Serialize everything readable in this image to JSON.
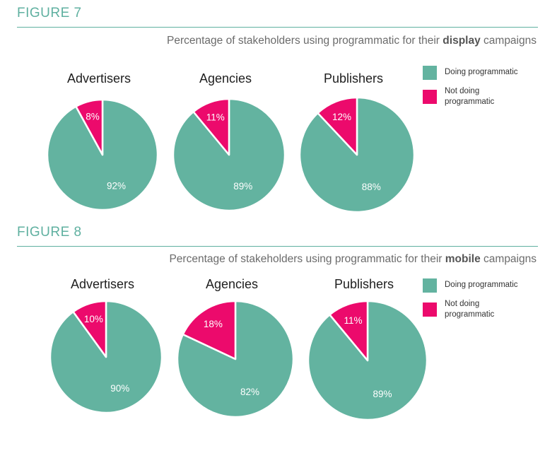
{
  "colors": {
    "doing": "#63b3a0",
    "not_doing": "#ec0a6c",
    "accent": "#5fb0a0"
  },
  "chart_data": [
    {
      "type": "pie",
      "figure_label": "FIGURE 7",
      "title_pre": "Percentage of stakeholders using programmatic for their",
      "title_bold": "display",
      "title_post": "campaigns",
      "legend": [
        "Doing programmatic",
        "Not doing programmatic"
      ],
      "pies": [
        {
          "name": "Advertisers",
          "doing": 92,
          "not_doing": 8,
          "doing_label": "92%",
          "not_doing_label": "8%"
        },
        {
          "name": "Agencies",
          "doing": 89,
          "not_doing": 11,
          "doing_label": "89%",
          "not_doing_label": "11%"
        },
        {
          "name": "Publishers",
          "doing": 88,
          "not_doing": 12,
          "doing_label": "88%",
          "not_doing_label": "12%"
        }
      ]
    },
    {
      "type": "pie",
      "figure_label": "FIGURE 8",
      "title_pre": "Percentage of stakeholders using programmatic for their",
      "title_bold": "mobile",
      "title_post": "campaigns",
      "legend": [
        "Doing programmatic",
        "Not doing programmatic"
      ],
      "pies": [
        {
          "name": "Advertisers",
          "doing": 90,
          "not_doing": 10,
          "doing_label": "90%",
          "not_doing_label": "10%"
        },
        {
          "name": "Agencies",
          "doing": 82,
          "not_doing": 18,
          "doing_label": "82%",
          "not_doing_label": "18%"
        },
        {
          "name": "Publishers",
          "doing": 89,
          "not_doing": 11,
          "doing_label": "89%",
          "not_doing_label": "11%"
        }
      ]
    }
  ]
}
